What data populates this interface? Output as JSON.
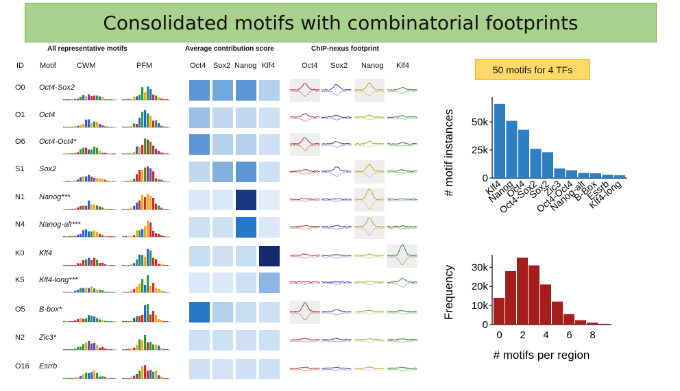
{
  "title": "Consolidated motifs with combinatorial footprints",
  "sections": {
    "motifs": "All representative motifs",
    "contrib": "Average contribution score",
    "footprint": "ChIP-nexus footprint"
  },
  "columns": {
    "id": "ID",
    "motif": "Motif",
    "cwm": "CWM",
    "pfm": "PFM",
    "contrib": [
      "Oct4",
      "Sox2",
      "Nanog",
      "Klf4"
    ],
    "footprint": [
      "Oct4",
      "Sox2",
      "Nanog",
      "Klf4"
    ]
  },
  "rows": [
    {
      "id": "O0",
      "motif": "Oct4-Sox2",
      "contrib": [
        0.55,
        0.45,
        0.55,
        0.2
      ]
    },
    {
      "id": "O1",
      "motif": "Oct4",
      "contrib": [
        0.3,
        0.15,
        0.15,
        0.1
      ]
    },
    {
      "id": "O6",
      "motif": "Oct4-Oct4*",
      "contrib": [
        0.55,
        0.2,
        0.2,
        0.1
      ]
    },
    {
      "id": "S1",
      "motif": "Sox2",
      "contrib": [
        0.15,
        0.4,
        0.55,
        0.1
      ]
    },
    {
      "id": "N1",
      "motif": "Nanog***",
      "contrib": [
        0.05,
        0.05,
        0.95,
        0.02
      ]
    },
    {
      "id": "N4",
      "motif": "Nanog-alt***",
      "contrib": [
        0.1,
        0.1,
        0.75,
        0.05
      ]
    },
    {
      "id": "K0",
      "motif": "Klf4",
      "contrib": [
        0.12,
        0.1,
        0.12,
        1.0
      ]
    },
    {
      "id": "K5",
      "motif": "Klf4-long***",
      "contrib": [
        0.05,
        0.05,
        0.1,
        0.35
      ]
    },
    {
      "id": "O5",
      "motif": "B-box*",
      "contrib": [
        0.75,
        0.2,
        0.12,
        0.1
      ]
    },
    {
      "id": "N2",
      "motif": "Zic3*",
      "contrib": [
        0.1,
        0.1,
        0.1,
        0.1
      ]
    },
    {
      "id": "O16",
      "motif": "Esrrb",
      "contrib": [
        0.1,
        0.08,
        0.1,
        0.1
      ]
    }
  ],
  "badge": "50 motifs for 4 TFs",
  "colors": {
    "bar_blue": "#2e7fc1",
    "bar_red": "#a51d1d",
    "oct4": "#b22a2a",
    "sox2": "#3a3aa8",
    "nanog": "#b5a22c",
    "klf4": "#2f7d2f"
  },
  "chart_data": [
    {
      "type": "bar",
      "categories": [
        "Klf4",
        "Nanog",
        "Oct4",
        "Oct4-Sox2",
        "Sox2",
        "Zic3",
        "Oct4-Oct4",
        "Nanog-alt",
        "B-Box",
        "Essrb",
        "Klf4-long"
      ],
      "values": [
        66000,
        51000,
        43000,
        26000,
        23000,
        8500,
        7000,
        4500,
        4200,
        3000,
        2500
      ],
      "ylabel": "# motif instances",
      "yticks": [
        "0",
        "25k",
        "50k"
      ],
      "ylim": [
        0,
        72000
      ]
    },
    {
      "type": "bar",
      "x": [
        0,
        1,
        2,
        3,
        4,
        5,
        6,
        7,
        8,
        9
      ],
      "values": [
        14000,
        28000,
        35000,
        31000,
        21000,
        12000,
        5500,
        2300,
        1000,
        400
      ],
      "xlabel": "# motifs per region",
      "ylabel": "Frequency",
      "xticks": [
        "0",
        "2",
        "4",
        "6",
        "8"
      ],
      "yticks": [
        "0",
        "10k",
        "20k",
        "30k"
      ],
      "ylim": [
        0,
        38000
      ]
    }
  ]
}
